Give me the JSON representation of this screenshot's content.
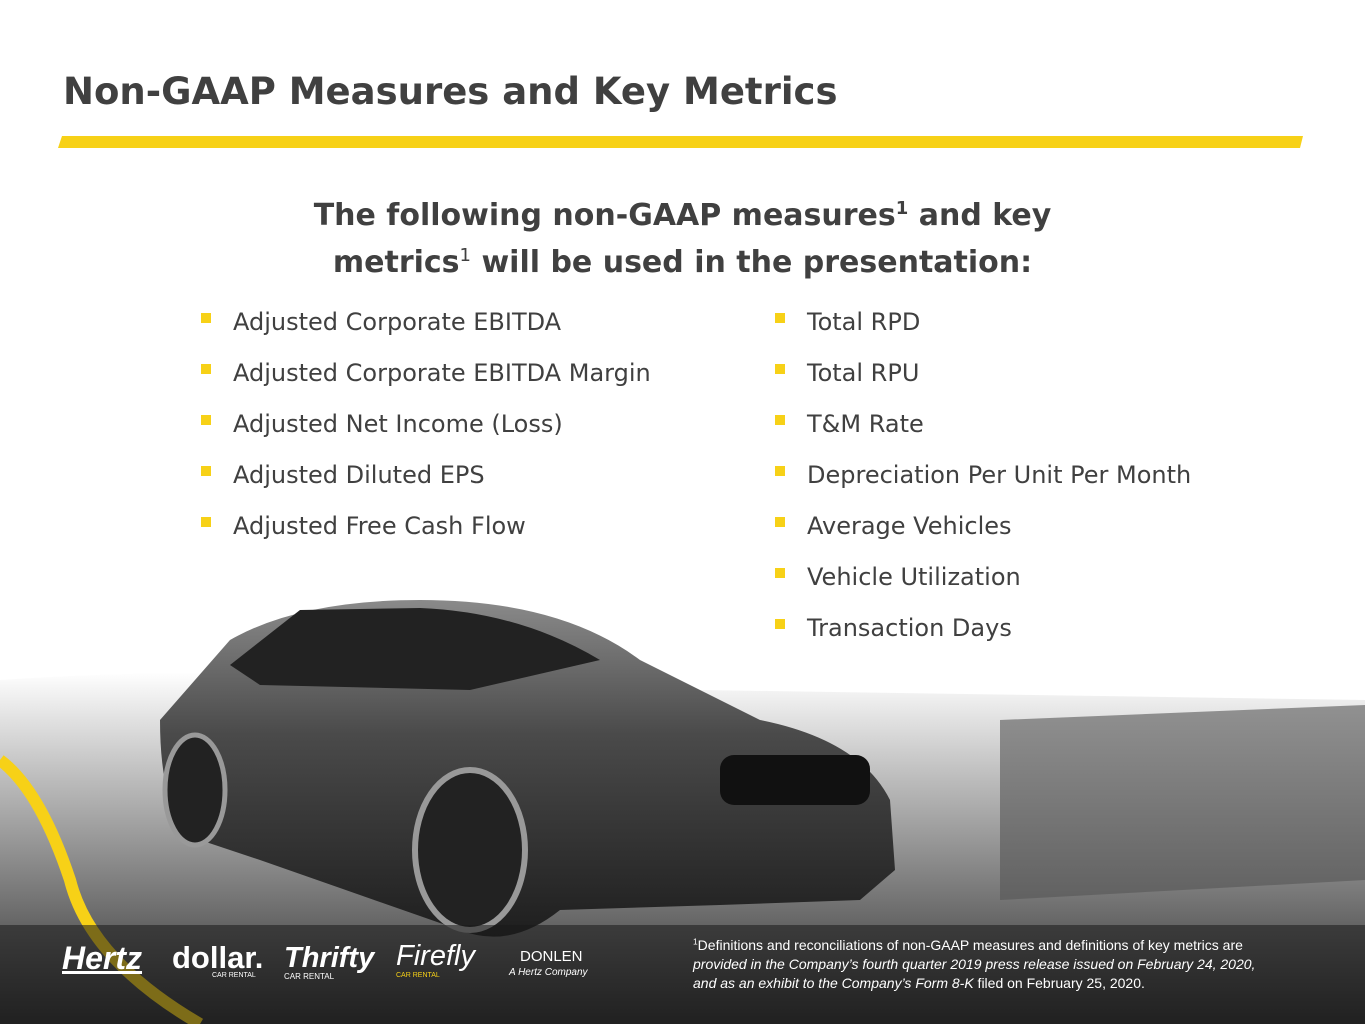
{
  "header": {
    "title": "Non-GAAP Measures and Key Metrics"
  },
  "subtitle": {
    "line1": {
      "text": "The following non-GAAP measures",
      "sup": "1",
      "rest": " and key"
    },
    "line2": {
      "text": "metrics",
      "sup": "1",
      "rest": " will be used in the presentation:"
    }
  },
  "left_list": [
    "Adjusted Corporate EBITDA",
    "Adjusted Corporate EBITDA Margin",
    "Adjusted Net Income (Loss)",
    "Adjusted Diluted EPS",
    "Adjusted Free Cash Flow"
  ],
  "right_list": [
    "Total RPD",
    "Total RPU",
    "T&M Rate",
    "Depreciation Per Unit Per Month",
    "Average Vehicles",
    "Vehicle Utilization",
    "Transaction Days"
  ],
  "footnote": {
    "sup": "1",
    "line1": "Definitions and reconciliations of non-GAAP measures and definitions of key metrics are",
    "line2": "provided in the Company’s fourth quarter 2019 press release issued on February 24, 2020,",
    "line3_italic": "and as an exhibit to the Company’s Form 8-K",
    "line3_rest": " filed on February 25, 2020."
  },
  "logos": {
    "hertz": "Hertz",
    "dollar": "dollar.",
    "dollar_sub": "CAR RENTAL",
    "thrifty": "Thrifty",
    "thrifty_sub": "CAR RENTAL",
    "firefly": "Firefly",
    "firefly_sub": "CAR RENTAL",
    "donlen": "DONLEN",
    "donlen_sub": "A Hertz Company"
  }
}
